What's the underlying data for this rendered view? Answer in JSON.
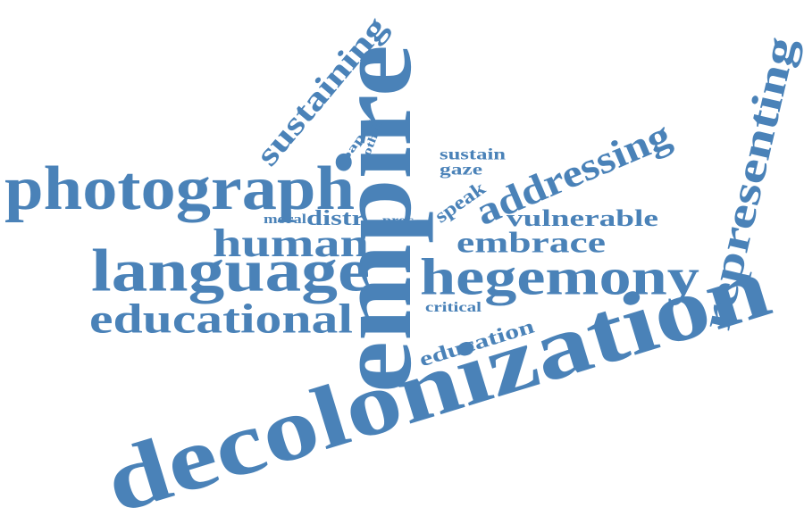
{
  "theme": {
    "word_color": "#4a82b8",
    "background": "#ffffff"
  },
  "words": [
    {
      "id": "decolonization",
      "text": "decolonization"
    },
    {
      "id": "empire",
      "text": "empire"
    },
    {
      "id": "photograph",
      "text": "photograph"
    },
    {
      "id": "language",
      "text": "language"
    },
    {
      "id": "hegemony",
      "text": "hegemony"
    },
    {
      "id": "representing",
      "text": "representing"
    },
    {
      "id": "addressing",
      "text": "addressing"
    },
    {
      "id": "educational",
      "text": "educational"
    },
    {
      "id": "human",
      "text": "human"
    },
    {
      "id": "sustaining",
      "text": "sustaining"
    },
    {
      "id": "embrace",
      "text": "embrace"
    },
    {
      "id": "vulnerable",
      "text": "vulnerable"
    },
    {
      "id": "education",
      "text": "education"
    },
    {
      "id": "distr",
      "text": "distr"
    },
    {
      "id": "speak",
      "text": "speak"
    },
    {
      "id": "sustain",
      "text": "sustain"
    },
    {
      "id": "gaze",
      "text": "gaze"
    },
    {
      "id": "critical",
      "text": "critical"
    },
    {
      "id": "moral",
      "text": "moral"
    },
    {
      "id": "proc",
      "text": "proc"
    },
    {
      "id": "paper",
      "text": "paper"
    },
    {
      "id": "other",
      "text": "other"
    }
  ]
}
